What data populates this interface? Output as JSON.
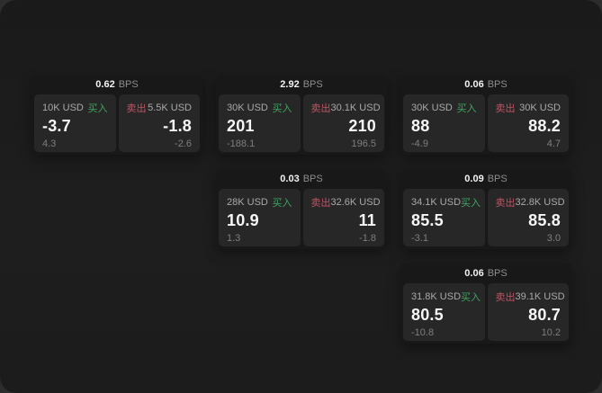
{
  "labels": {
    "bps_unit": "BPS",
    "buy": "买入",
    "sell": "卖出"
  },
  "colors": {
    "backdrop": "#2d2d2d",
    "window_bg": "#1d1d1d",
    "card_bg": "#181818",
    "panel_bg": "#272727",
    "buy_green": "#3ea562",
    "sell_red": "#bf5364"
  },
  "cards": [
    {
      "row": 0,
      "col": 0,
      "bps": "0.62",
      "buy": {
        "amount": "10K USD",
        "value": "-3.7",
        "sub": "4.3"
      },
      "sell": {
        "amount": "5.5K USD",
        "value": "-1.8",
        "sub": "-2.6"
      }
    },
    {
      "row": 0,
      "col": 1,
      "bps": "2.92",
      "buy": {
        "amount": "30K USD",
        "value": "201",
        "sub": "-188.1"
      },
      "sell": {
        "amount": "30.1K USD",
        "value": "210",
        "sub": "196.5"
      }
    },
    {
      "row": 0,
      "col": 2,
      "bps": "0.06",
      "buy": {
        "amount": "30K USD",
        "value": "88",
        "sub": "-4.9"
      },
      "sell": {
        "amount": "30K USD",
        "value": "88.2",
        "sub": "4.7"
      }
    },
    {
      "row": 1,
      "col": 1,
      "bps": "0.03",
      "buy": {
        "amount": "28K USD",
        "value": "10.9",
        "sub": "1.3"
      },
      "sell": {
        "amount": "32.6K USD",
        "value": "11",
        "sub": "-1.8"
      }
    },
    {
      "row": 1,
      "col": 2,
      "bps": "0.09",
      "buy": {
        "amount": "34.1K USD",
        "value": "85.5",
        "sub": "-3.1"
      },
      "sell": {
        "amount": "32.8K USD",
        "value": "85.8",
        "sub": "3.0"
      }
    },
    {
      "row": 2,
      "col": 2,
      "bps": "0.06",
      "buy": {
        "amount": "31.8K USD",
        "value": "80.5",
        "sub": "-10.8"
      },
      "sell": {
        "amount": "39.1K USD",
        "value": "80.7",
        "sub": "10.2"
      }
    }
  ]
}
